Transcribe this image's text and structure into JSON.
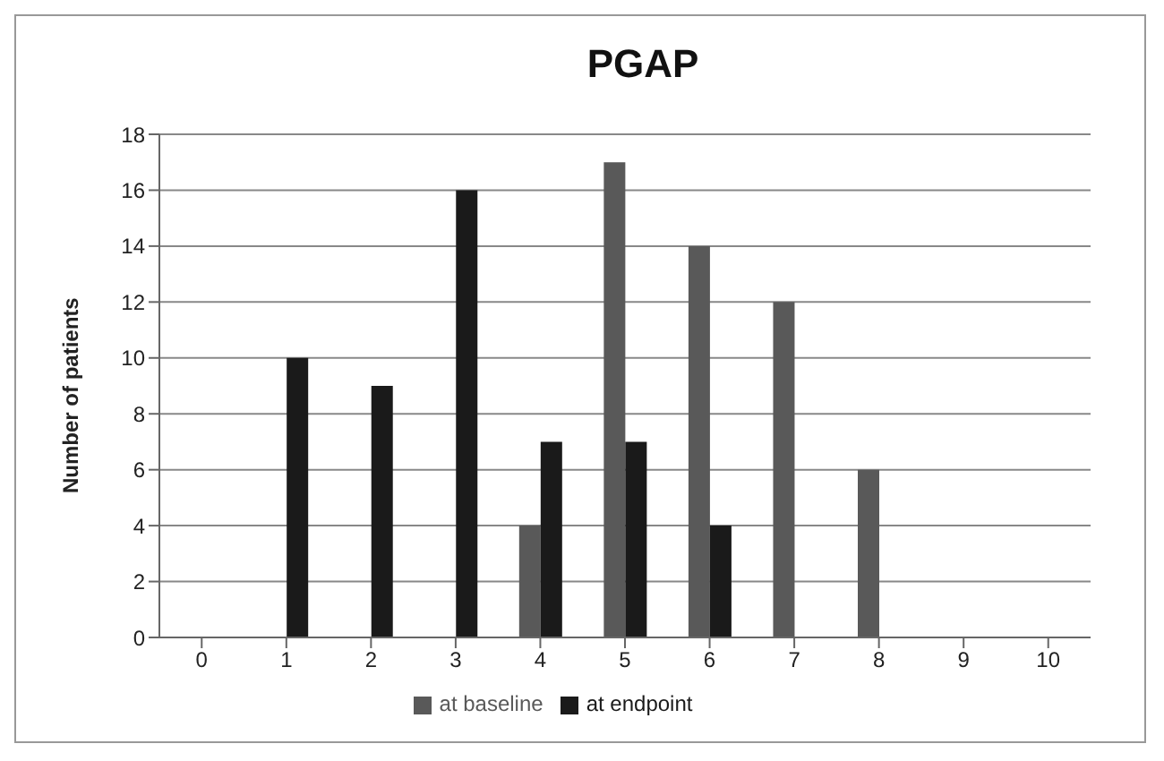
{
  "chart_data": {
    "type": "bar",
    "title": "PGAP",
    "ylabel": "Number of patients",
    "categories": [
      "0",
      "1",
      "2",
      "3",
      "4",
      "5",
      "6",
      "7",
      "8",
      "9",
      "10"
    ],
    "series": [
      {
        "name": "at baseline",
        "color": "#595959",
        "values": [
          0,
          0,
          0,
          0,
          4,
          17,
          14,
          12,
          6,
          0,
          0
        ]
      },
      {
        "name": "at endpoint",
        "color": "#1a1a1a",
        "values": [
          0,
          10,
          9,
          16,
          7,
          7,
          4,
          0,
          0,
          0,
          0
        ]
      }
    ],
    "ylim": [
      0,
      18
    ],
    "yticks": [
      0,
      2,
      4,
      6,
      8,
      10,
      12,
      14,
      16,
      18
    ],
    "grid": "y",
    "legend": "bottom"
  }
}
